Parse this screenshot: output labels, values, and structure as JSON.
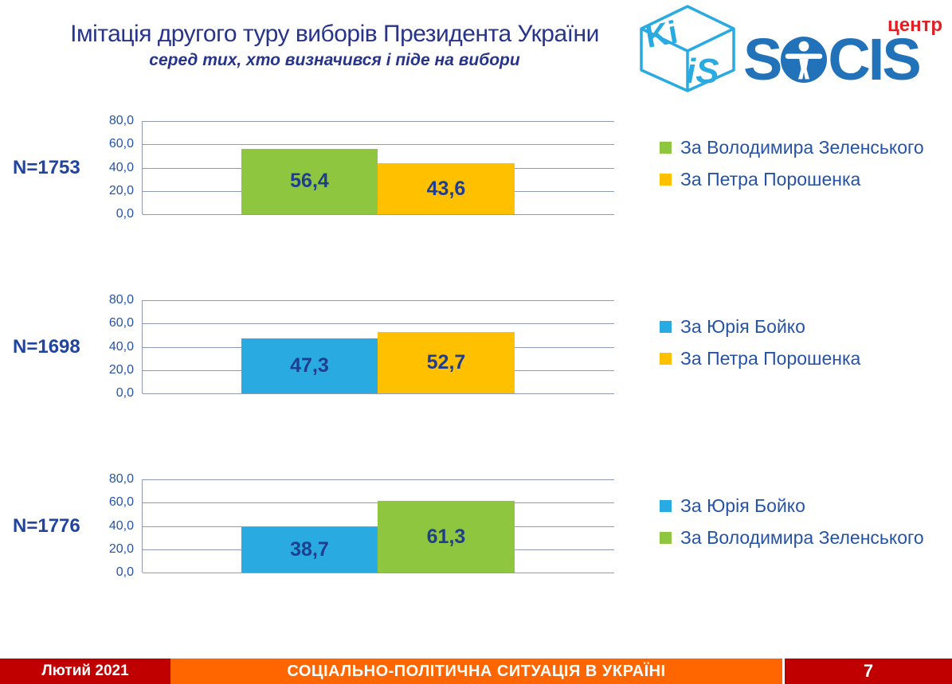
{
  "header": {
    "title": "Імітація другого туру виборів Президента України",
    "subtitle": "серед тих, хто визначився і піде на вибори",
    "logos": {
      "kiis_top": "Ki",
      "kiis_bottom": "iS",
      "socis_s": "S",
      "socis_cis": "CIS",
      "centr": "центр"
    }
  },
  "colors": {
    "green": "#8FC640",
    "yellow": "#FFC000",
    "blue": "#29ABE2",
    "navy_text": "#27348B",
    "grid": "#8E9AB8",
    "footer_red": "#C00000",
    "footer_orange": "#FF6600",
    "logo_blue": "#2272B9",
    "logo_cyan": "#29ABE2",
    "logo_red": "#E31E24"
  },
  "charts": [
    {
      "n_label": "N=1753",
      "y_ticks": [
        "80,0",
        "60,0",
        "40,0",
        "20,0",
        "0,0"
      ],
      "bars": [
        {
          "label": "56,4",
          "value": 56.4,
          "color": "#8FC640"
        },
        {
          "label": "43,6",
          "value": 43.6,
          "color": "#FFC000"
        }
      ],
      "legend": [
        {
          "label": "За Володимира Зеленського",
          "color": "#8FC640"
        },
        {
          "label": "За Петра Порошенка",
          "color": "#FFC000"
        }
      ]
    },
    {
      "n_label": "N=1698",
      "y_ticks": [
        "80,0",
        "60,0",
        "40,0",
        "20,0",
        "0,0"
      ],
      "bars": [
        {
          "label": "47,3",
          "value": 47.3,
          "color": "#29ABE2"
        },
        {
          "label": "52,7",
          "value": 52.7,
          "color": "#FFC000"
        }
      ],
      "legend": [
        {
          "label": "За Юрія Бойко",
          "color": "#29ABE2"
        },
        {
          "label": "За Петра Порошенка",
          "color": "#FFC000"
        }
      ]
    },
    {
      "n_label": "N=1776",
      "y_ticks": [
        "80,0",
        "60,0",
        "40,0",
        "20,0",
        "0,0"
      ],
      "bars": [
        {
          "label": "38,7",
          "value": 38.7,
          "color": "#29ABE2"
        },
        {
          "label": "61,3",
          "value": 61.3,
          "color": "#8FC640"
        }
      ],
      "legend": [
        {
          "label": "За Юрія Бойко",
          "color": "#29ABE2"
        },
        {
          "label": "За Володимира Зеленського",
          "color": "#8FC640"
        }
      ]
    }
  ],
  "chart_data": [
    {
      "type": "bar",
      "title": "N=1753",
      "categories": [
        "За Володимира Зеленського",
        "За Петра Порошенка"
      ],
      "values": [
        56.4,
        43.6
      ],
      "colors": [
        "#8FC640",
        "#FFC000"
      ],
      "xlabel": "",
      "ylabel": "",
      "ylim": [
        0,
        80
      ],
      "yticks": [
        0,
        20,
        40,
        60,
        80
      ],
      "grid": true,
      "legend_position": "right"
    },
    {
      "type": "bar",
      "title": "N=1698",
      "categories": [
        "За Юрія Бойко",
        "За Петра Порошенка"
      ],
      "values": [
        47.3,
        52.7
      ],
      "colors": [
        "#29ABE2",
        "#FFC000"
      ],
      "xlabel": "",
      "ylabel": "",
      "ylim": [
        0,
        80
      ],
      "yticks": [
        0,
        20,
        40,
        60,
        80
      ],
      "grid": true,
      "legend_position": "right"
    },
    {
      "type": "bar",
      "title": "N=1776",
      "categories": [
        "За Юрія Бойко",
        "За Володимира Зеленського"
      ],
      "values": [
        38.7,
        61.3
      ],
      "colors": [
        "#29ABE2",
        "#8FC640"
      ],
      "xlabel": "",
      "ylabel": "",
      "ylim": [
        0,
        80
      ],
      "yticks": [
        0,
        20,
        40,
        60,
        80
      ],
      "grid": true,
      "legend_position": "right"
    }
  ],
  "footer": {
    "date": "Лютий 2021",
    "title": "СОЦІАЛЬНО-ПОЛІТИЧНА СИТУАЦІЯ В УКРАЇНІ",
    "page": "7"
  }
}
